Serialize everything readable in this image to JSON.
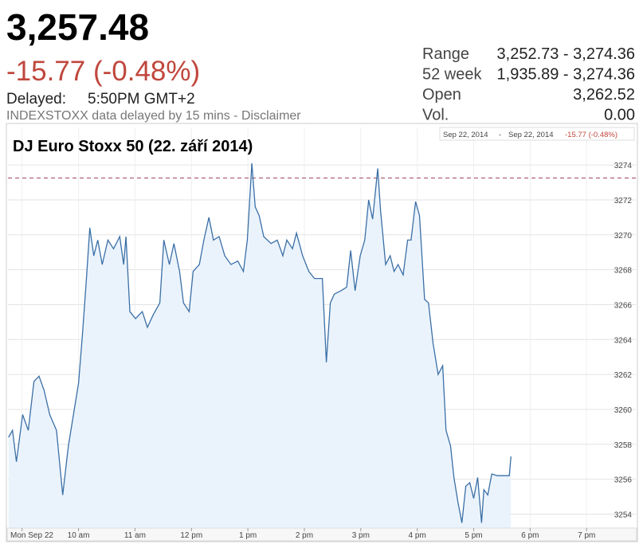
{
  "header": {
    "price": "3,257.48",
    "change": "-15.77 (-0.48%)",
    "delayed_label": "Delayed:",
    "delayed_time": "5:50PM GMT+2",
    "note": "INDEXSTOXX data delayed by 15 mins - Disclaimer"
  },
  "stats": {
    "rows": [
      [
        "Range",
        "3,252.73 - 3,274.36"
      ],
      [
        "52 week",
        "1,935.89 - 3,274.36"
      ],
      [
        "Open",
        "3,262.52"
      ],
      [
        "Vol.",
        "0.00"
      ]
    ]
  },
  "chart_data": {
    "type": "line",
    "title": "DJ Euro Stoxx 50 (22. září 2014)",
    "range_legend": {
      "from": "Sep 22, 2014",
      "separator": "-",
      "to": "Sep 22, 2014",
      "change": "-15.77 (-0.48%)"
    },
    "x": [
      8.76,
      8.83,
      8.9,
      9.01,
      9.11,
      9.21,
      9.3,
      9.39,
      9.49,
      9.61,
      9.72,
      9.82,
      9.91,
      10.0,
      10.07,
      10.14,
      10.2,
      10.27,
      10.34,
      10.42,
      10.52,
      10.62,
      10.73,
      10.8,
      10.84,
      10.91,
      11.01,
      11.13,
      11.22,
      11.32,
      11.44,
      11.51,
      11.61,
      11.69,
      11.79,
      11.86,
      11.96,
      12.03,
      12.14,
      12.22,
      12.31,
      12.39,
      12.49,
      12.59,
      12.7,
      12.82,
      12.92,
      12.99,
      13.07,
      13.13,
      13.2,
      13.28,
      13.41,
      13.52,
      13.62,
      13.69,
      13.79,
      13.86,
      13.97,
      14.08,
      14.18,
      14.32,
      14.39,
      14.46,
      14.53,
      14.65,
      14.75,
      14.82,
      14.9,
      14.99,
      15.07,
      15.14,
      15.21,
      15.3,
      15.35,
      15.44,
      15.52,
      15.59,
      15.66,
      15.75,
      15.83,
      15.89,
      15.97,
      16.04,
      16.13,
      16.2,
      16.28,
      16.37,
      16.45,
      16.51,
      16.59,
      16.65,
      16.72,
      16.79,
      16.86,
      16.93,
      17.0,
      17.07,
      17.14,
      17.18,
      17.25,
      17.32,
      17.42,
      17.63,
      17.66
    ],
    "values": [
      3258.4,
      3258.8,
      3257.0,
      3259.7,
      3258.8,
      3261.6,
      3261.9,
      3261.1,
      3259.7,
      3258.8,
      3255.1,
      3257.9,
      3259.7,
      3261.5,
      3264.3,
      3267.5,
      3270.4,
      3268.8,
      3269.7,
      3268.3,
      3269.7,
      3269.2,
      3269.9,
      3268.3,
      3269.9,
      3265.6,
      3265.2,
      3265.6,
      3264.7,
      3265.4,
      3266.1,
      3269.7,
      3268.3,
      3269.5,
      3267.9,
      3266.1,
      3265.6,
      3267.9,
      3268.3,
      3269.7,
      3271.0,
      3269.7,
      3269.9,
      3268.8,
      3268.3,
      3268.5,
      3267.9,
      3269.7,
      3274.1,
      3271.6,
      3271.1,
      3269.9,
      3269.5,
      3269.7,
      3268.8,
      3269.7,
      3269.2,
      3270.1,
      3268.8,
      3267.9,
      3267.5,
      3267.5,
      3262.7,
      3266.1,
      3266.6,
      3266.8,
      3267.0,
      3269.1,
      3266.8,
      3268.8,
      3269.7,
      3272.0,
      3270.9,
      3273.8,
      3271.4,
      3268.3,
      3268.8,
      3267.9,
      3268.3,
      3267.7,
      3269.7,
      3269.7,
      3271.9,
      3271.1,
      3266.3,
      3266.1,
      3263.8,
      3262.0,
      3262.5,
      3258.8,
      3257.9,
      3256.1,
      3254.7,
      3253.5,
      3255.6,
      3255.8,
      3254.9,
      3256.1,
      3253.5,
      3255.4,
      3255.1,
      3256.3,
      3256.2,
      3256.2,
      3257.3
    ],
    "color": "#3b6fa6",
    "fill_color": "#eaf3fc",
    "previous_close": 3273.25,
    "previous_close_color": "#a3455a",
    "xlim": [
      8.75,
      19.9
    ],
    "ylim": [
      3253.2,
      3276.15
    ],
    "xticks": [
      {
        "value": 9,
        "label": "Mon Sep 22"
      },
      {
        "value": 10,
        "label": "10 am"
      },
      {
        "value": 11,
        "label": "11 am"
      },
      {
        "value": 12,
        "label": "12 pm"
      },
      {
        "value": 13,
        "label": "1 pm"
      },
      {
        "value": 14,
        "label": "2 pm"
      },
      {
        "value": 15,
        "label": "3 pm"
      },
      {
        "value": 16,
        "label": "4 pm"
      },
      {
        "value": 17,
        "label": "5 pm"
      },
      {
        "value": 18,
        "label": "6 pm"
      },
      {
        "value": 19,
        "label": "7 pm"
      }
    ],
    "yticks": [
      3254,
      3256,
      3258,
      3260,
      3262,
      3264,
      3266,
      3268,
      3270,
      3272,
      3274
    ],
    "grid": true
  }
}
